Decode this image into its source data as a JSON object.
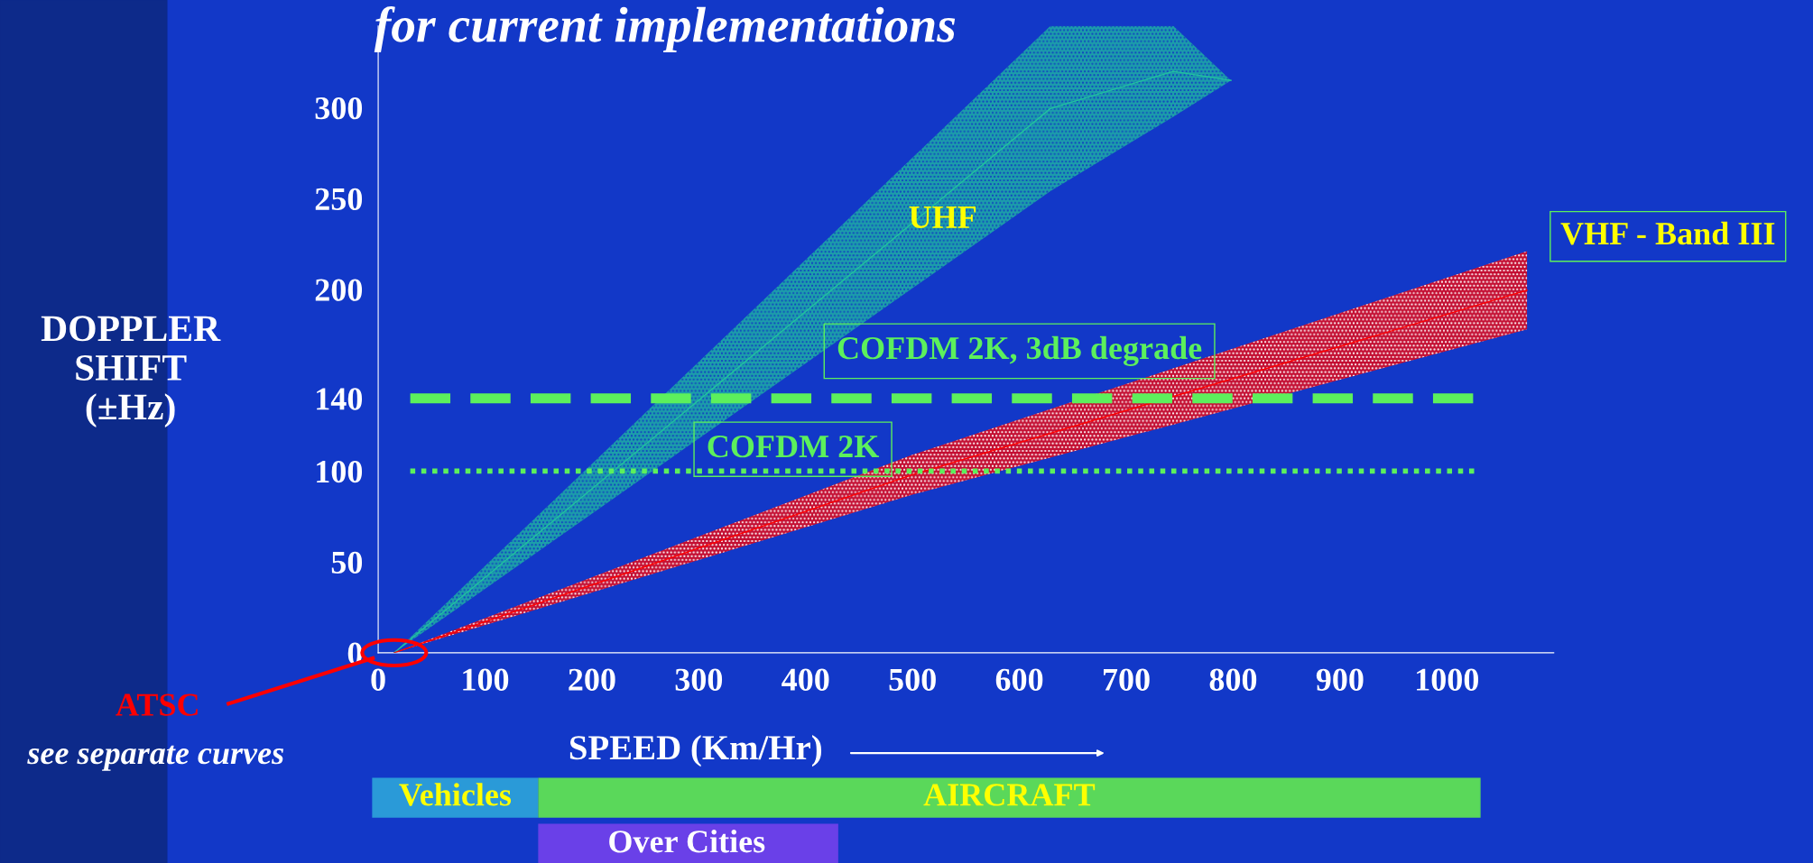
{
  "chart_data": {
    "type": "line",
    "title": "for current implementations",
    "xlabel": "SPEED (Km/Hr)",
    "ylabel": "DOPPLER\nSHIFT\n(±Hz)",
    "xlim": [
      0,
      1100
    ],
    "xticks": [
      0,
      100,
      200,
      300,
      400,
      500,
      600,
      700,
      800,
      900,
      1000
    ],
    "ylim": [
      0,
      345
    ],
    "yticks": [
      0,
      50,
      100,
      140,
      200,
      250,
      300
    ],
    "series": [
      {
        "name": "UHF",
        "color": "#20c0a0",
        "x": [
          15,
          629,
          744,
          798
        ],
        "values": [
          0,
          299.5,
          320,
          315
        ],
        "lower": [
          0,
          254,
          295,
          315
        ],
        "upper": [
          0,
          345,
          345,
          315
        ]
      },
      {
        "name": "VHF - Band III",
        "color": "#ff0000",
        "x": [
          15,
          500,
          1075
        ],
        "values": [
          0,
          98,
          199.5
        ],
        "lower": [
          0,
          87,
          178
        ],
        "upper": [
          0,
          109,
          221
        ]
      }
    ],
    "ref_lines": [
      {
        "axis": "y",
        "value": 140,
        "label": "COFDM 2K, 3dB degrade",
        "color": "#5cf05c",
        "line_style": "dashed"
      },
      {
        "axis": "y",
        "value": 100,
        "label": "COFDM 2K",
        "color": "#5cf05c",
        "line_style": "dotted"
      }
    ],
    "annotations": [
      "ATSC",
      "see separate curves",
      "Vehicles",
      "AIRCRAFT",
      "Over Cities"
    ],
    "grid": false,
    "legend": false
  }
}
